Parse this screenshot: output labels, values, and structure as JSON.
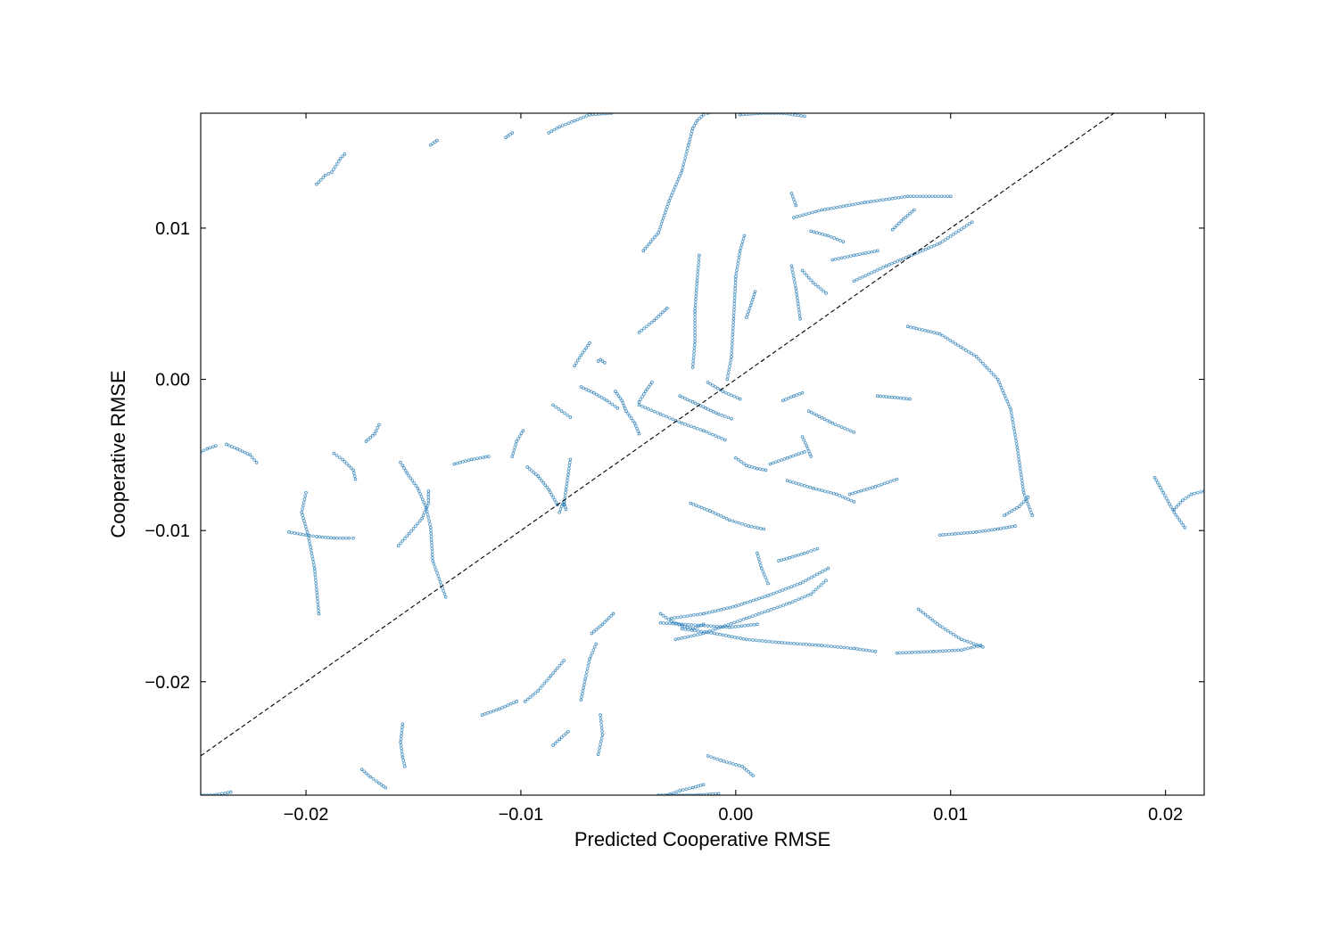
{
  "chart_data": {
    "type": "scatter",
    "xlabel": "Predicted Cooperative RMSE",
    "ylabel": "Cooperative RMSE",
    "xlim": [
      -0.0249,
      0.0218
    ],
    "ylim": [
      -0.0275,
      0.0176
    ],
    "x_ticks": [
      -0.02,
      -0.01,
      0.0,
      0.01,
      0.02
    ],
    "x_tick_labels": [
      "−0.02",
      "−0.01",
      "0.00",
      "0.01",
      "0.02"
    ],
    "y_ticks": [
      -0.02,
      -0.01,
      0.0,
      0.01
    ],
    "y_tick_labels": [
      "−0.02",
      "−0.01",
      "0.00",
      "0.01"
    ],
    "grid": false,
    "marker_color": "#1f77b4",
    "reference_line": {
      "style": "dashed",
      "color": "#000000",
      "slope": 1,
      "intercept": 0
    },
    "trails": [
      {
        "x": [
          -0.0135,
          -0.0141,
          -0.0142,
          -0.0144,
          -0.0148,
          -0.0153,
          -0.0155,
          -0.0156
        ],
        "y": [
          -0.0144,
          -0.012,
          -0.0098,
          -0.0085,
          -0.0072,
          -0.0062,
          -0.0057,
          -0.0055
        ]
      },
      {
        "x": [
          -0.0157,
          -0.0152,
          -0.0146,
          -0.0143,
          -0.0143
        ],
        "y": [
          -0.011,
          -0.0102,
          -0.0092,
          -0.0082,
          -0.0074
        ]
      },
      {
        "x": [
          -0.0208,
          -0.02,
          -0.0195,
          -0.0187,
          -0.018,
          -0.0178
        ],
        "y": [
          -0.0101,
          -0.0103,
          -0.0104,
          -0.0105,
          -0.0105,
          -0.0105
        ]
      },
      {
        "x": [
          -0.02,
          -0.0202,
          -0.0199,
          -0.0196,
          -0.0194
        ],
        "y": [
          -0.0075,
          -0.0088,
          -0.0103,
          -0.0125,
          -0.0155
        ]
      },
      {
        "x": [
          -0.0187,
          -0.0183,
          -0.0178,
          -0.0177
        ],
        "y": [
          -0.0049,
          -0.0053,
          -0.006,
          -0.0066
        ]
      },
      {
        "x": [
          -0.0172,
          -0.0168,
          -0.0166
        ],
        "y": [
          -0.0041,
          -0.0036,
          -0.003
        ]
      },
      {
        "x": [
          -0.0237,
          -0.0232,
          -0.0226,
          -0.0223
        ],
        "y": [
          -0.0043,
          -0.0046,
          -0.005,
          -0.0055
        ]
      },
      {
        "x": [
          -0.0249,
          -0.0246,
          -0.0242
        ],
        "y": [
          -0.0048,
          -0.0046,
          -0.0044
        ]
      },
      {
        "x": [
          -0.0195,
          -0.0191,
          -0.0188,
          -0.0184,
          -0.0182
        ],
        "y": [
          0.0129,
          0.0135,
          0.0137,
          0.0146,
          0.0149
        ]
      },
      {
        "x": [
          -0.0142,
          -0.0139
        ],
        "y": [
          0.0155,
          0.0158
        ]
      },
      {
        "x": [
          -0.0107,
          -0.0104
        ],
        "y": [
          0.016,
          0.0163
        ]
      },
      {
        "x": [
          -0.0087,
          -0.0082,
          -0.0075,
          -0.0068,
          -0.0058
        ],
        "y": [
          0.0163,
          0.0167,
          0.0171,
          0.0175,
          0.0176
        ]
      },
      {
        "x": [
          -0.0043,
          -0.0036,
          -0.0031,
          -0.0025,
          -0.0022,
          -0.002,
          -0.0018,
          -0.0015,
          -0.0013
        ],
        "y": [
          0.0085,
          0.0097,
          0.0118,
          0.0138,
          0.0155,
          0.0166,
          0.0171,
          0.0175,
          0.0176
        ]
      },
      {
        "x": [
          0.0002,
          0.0012,
          0.0022,
          0.0032
        ],
        "y": [
          0.0175,
          0.0176,
          0.0176,
          0.0174
        ]
      },
      {
        "x": [
          -0.002,
          -0.0019,
          -0.0019,
          -0.0018,
          -0.0017
        ],
        "y": [
          0.0008,
          0.0025,
          0.0045,
          0.0065,
          0.0082
        ]
      },
      {
        "x": [
          -0.0004,
          -0.0002,
          -0.0001,
          0.0,
          0.0002,
          0.0004
        ],
        "y": [
          0.0,
          0.0015,
          0.004,
          0.0068,
          0.0085,
          0.0095
        ]
      },
      {
        "x": [
          0.003,
          0.0028,
          0.0026
        ],
        "y": [
          0.004,
          0.006,
          0.0075
        ]
      },
      {
        "x": [
          0.0027,
          0.004,
          0.006,
          0.008,
          0.01
        ],
        "y": [
          0.0107,
          0.0112,
          0.0117,
          0.0121,
          0.0121
        ]
      },
      {
        "x": [
          0.0026,
          0.0028
        ],
        "y": [
          0.0123,
          0.0115
        ]
      },
      {
        "x": [
          0.0055,
          0.007,
          0.0095,
          0.011
        ],
        "y": [
          0.0065,
          0.0075,
          0.009,
          0.0104
        ]
      },
      {
        "x": [
          0.008,
          0.0095,
          0.0112,
          0.0122,
          0.0128,
          0.0131,
          0.0134,
          0.0138
        ],
        "y": [
          0.0035,
          0.003,
          0.0015,
          0.0,
          -0.002,
          -0.0045,
          -0.0075,
          -0.009
        ]
      },
      {
        "x": [
          0.0125,
          0.0132,
          0.0136
        ],
        "y": [
          -0.009,
          -0.0084,
          -0.0078
        ]
      },
      {
        "x": [
          0.0095,
          0.0112,
          0.0122,
          0.013
        ],
        "y": [
          -0.0103,
          -0.0101,
          -0.0099,
          -0.0097
        ]
      },
      {
        "x": [
          0.0195,
          0.0199,
          0.0204,
          0.0209
        ],
        "y": [
          -0.0065,
          -0.0075,
          -0.0088,
          -0.0098
        ]
      },
      {
        "x": [
          0.0204,
          0.0208,
          0.0212,
          0.0218
        ],
        "y": [
          -0.0086,
          -0.008,
          -0.0076,
          -0.0074
        ]
      },
      {
        "x": [
          0.0085,
          0.0095,
          0.0105,
          0.0115
        ],
        "y": [
          -0.0152,
          -0.0163,
          -0.0172,
          -0.0177
        ]
      },
      {
        "x": [
          0.0075,
          0.0092,
          0.0105,
          0.0114
        ],
        "y": [
          -0.0181,
          -0.018,
          -0.0179,
          -0.0176
        ]
      },
      {
        "x": [
          -0.0035,
          -0.0025,
          -0.0013,
          -0.0003,
          0.001
        ],
        "y": [
          -0.0161,
          -0.0162,
          -0.0163,
          -0.0164,
          -0.0162
        ]
      },
      {
        "x": [
          -0.003,
          -0.0015,
          0.0,
          0.0015,
          0.003,
          0.0043
        ],
        "y": [
          -0.0158,
          -0.0155,
          -0.015,
          -0.0143,
          -0.0135,
          -0.0125
        ]
      },
      {
        "x": [
          -0.0028,
          -0.0015,
          -0.0005,
          0.0005,
          0.0015,
          0.0025,
          0.0035,
          0.0042
        ],
        "y": [
          -0.0172,
          -0.0168,
          -0.0163,
          -0.0158,
          -0.0153,
          -0.0148,
          -0.0142,
          -0.0133
        ]
      },
      {
        "x": [
          -0.0025,
          -0.001,
          0.0005,
          0.002,
          0.004,
          0.0055,
          0.0065
        ],
        "y": [
          -0.0165,
          -0.0168,
          -0.0172,
          -0.0174,
          -0.0176,
          -0.0178,
          -0.018
        ]
      },
      {
        "x": [
          -0.0035,
          -0.003,
          -0.0025,
          -0.002,
          -0.0015
        ],
        "y": [
          -0.0155,
          -0.016,
          -0.0163,
          -0.0165,
          -0.0162
        ]
      },
      {
        "x": [
          0.002,
          0.0025,
          0.0032,
          0.0038
        ],
        "y": [
          -0.012,
          -0.0118,
          -0.0115,
          -0.0112
        ]
      },
      {
        "x": [
          0.001,
          0.0012,
          0.0015
        ],
        "y": [
          -0.0115,
          -0.0125,
          -0.0135
        ]
      },
      {
        "x": [
          -0.0065,
          -0.0068,
          -0.007,
          -0.0072
        ],
        "y": [
          -0.0175,
          -0.0185,
          -0.0198,
          -0.0212
        ]
      },
      {
        "x": [
          -0.0063,
          -0.0062,
          -0.0064
        ],
        "y": [
          -0.0222,
          -0.0235,
          -0.0248
        ]
      },
      {
        "x": [
          -0.0067,
          -0.0062,
          -0.0057
        ],
        "y": [
          -0.0168,
          -0.0162,
          -0.0155
        ]
      },
      {
        "x": [
          -0.0098,
          -0.0092,
          -0.0086,
          -0.008
        ],
        "y": [
          -0.0213,
          -0.0206,
          -0.0196,
          -0.0186
        ]
      },
      {
        "x": [
          -0.0118,
          -0.011,
          -0.0102
        ],
        "y": [
          -0.0222,
          -0.0218,
          -0.0213
        ]
      },
      {
        "x": [
          -0.0155,
          -0.0156,
          -0.0155,
          -0.0154
        ],
        "y": [
          -0.0228,
          -0.024,
          -0.025,
          -0.0256
        ]
      },
      {
        "x": [
          -0.0174,
          -0.017,
          -0.0166,
          -0.0163
        ],
        "y": [
          -0.0258,
          -0.0263,
          -0.0267,
          -0.027
        ]
      },
      {
        "x": [
          -0.0032,
          -0.0026,
          -0.002,
          -0.0015
        ],
        "y": [
          -0.0275,
          -0.0272,
          -0.027,
          -0.0268
        ]
      },
      {
        "x": [
          -0.0013,
          -0.0007,
          0.0003,
          0.0008
        ],
        "y": [
          -0.0249,
          -0.0252,
          -0.0256,
          -0.0262
        ]
      },
      {
        "x": [
          -0.0008,
          -0.0019,
          -0.0036
        ],
        "y": [
          -0.0274,
          -0.0275,
          -0.0275
        ]
      },
      {
        "x": [
          -0.0085,
          -0.0082,
          -0.0078
        ],
        "y": [
          -0.0242,
          -0.0238,
          -0.0233
        ]
      },
      {
        "x": [
          -0.0235,
          -0.0243,
          -0.0249
        ],
        "y": [
          -0.0273,
          -0.0275,
          -0.0275
        ]
      },
      {
        "x": [
          -0.0104,
          -0.0102,
          -0.0099
        ],
        "y": [
          -0.0051,
          -0.0041,
          -0.0034
        ]
      },
      {
        "x": [
          -0.0115,
          -0.0123,
          -0.0131
        ],
        "y": [
          -0.0051,
          -0.0053,
          -0.0056
        ]
      },
      {
        "x": [
          -0.0097,
          -0.0092,
          -0.0087,
          -0.0083
        ],
        "y": [
          -0.0058,
          -0.0064,
          -0.0073,
          -0.0083
        ]
      },
      {
        "x": [
          -0.0082,
          -0.0081,
          -0.008,
          -0.0079
        ],
        "y": [
          -0.0088,
          -0.0084,
          -0.0081,
          -0.0086
        ]
      },
      {
        "x": [
          -0.0077,
          -0.0078,
          -0.0079,
          -0.008
        ],
        "y": [
          -0.0053,
          -0.0063,
          -0.0073,
          -0.0083
        ]
      },
      {
        "x": [
          -0.0064,
          -0.0063,
          -0.0062,
          -0.0061
        ],
        "y": [
          0.0012,
          0.0013,
          0.0012,
          0.0011
        ]
      },
      {
        "x": [
          -0.0056,
          -0.0053,
          -0.0051,
          -0.0047,
          -0.0045
        ],
        "y": [
          -0.0008,
          -0.0014,
          -0.0021,
          -0.0029,
          -0.0036
        ]
      },
      {
        "x": [
          -0.0072,
          -0.0066,
          -0.006,
          -0.0055
        ],
        "y": [
          -0.0005,
          -0.0009,
          -0.0014,
          -0.0019
        ]
      },
      {
        "x": [
          -0.0045,
          -0.0035,
          -0.0025,
          -0.0015,
          -0.0005
        ],
        "y": [
          -0.0017,
          -0.0023,
          -0.0029,
          -0.0034,
          -0.004
        ]
      },
      {
        "x": [
          -0.0026,
          -0.002,
          -0.0014,
          -0.0008,
          -0.0002
        ],
        "y": [
          -0.0011,
          -0.0015,
          -0.0019,
          -0.0023,
          -0.0026
        ]
      },
      {
        "x": [
          0.0,
          0.0005,
          0.001,
          0.0014
        ],
        "y": [
          -0.0052,
          -0.0057,
          -0.0059,
          -0.006
        ]
      },
      {
        "x": [
          0.0016,
          0.0024,
          0.0032
        ],
        "y": [
          -0.0056,
          -0.0052,
          -0.0048
        ]
      },
      {
        "x": [
          0.0022,
          0.0027,
          0.0031
        ],
        "y": [
          -0.0014,
          -0.0011,
          -0.0009
        ]
      },
      {
        "x": [
          0.0031,
          0.0033,
          0.0035
        ],
        "y": [
          -0.0038,
          -0.0044,
          -0.0051
        ]
      },
      {
        "x": [
          0.0066,
          0.0074,
          0.0081
        ],
        "y": [
          -0.0011,
          -0.0012,
          -0.0013
        ]
      },
      {
        "x": [
          0.0034,
          0.0045,
          0.0055
        ],
        "y": [
          -0.0021,
          -0.0029,
          -0.0035
        ]
      },
      {
        "x": [
          -0.0021,
          -0.0012,
          -0.0003,
          0.0006,
          0.0013
        ],
        "y": [
          -0.0082,
          -0.0087,
          -0.0093,
          -0.0097,
          -0.0099
        ]
      },
      {
        "x": [
          0.0024,
          0.0036,
          0.0047,
          0.0055
        ],
        "y": [
          -0.0067,
          -0.0072,
          -0.0076,
          -0.0081
        ]
      },
      {
        "x": [
          0.0053,
          0.0065,
          0.0075
        ],
        "y": [
          -0.0076,
          -0.0071,
          -0.0066
        ]
      },
      {
        "x": [
          0.0031,
          0.0036,
          0.0042
        ],
        "y": [
          0.0072,
          0.0064,
          0.0057
        ]
      },
      {
        "x": [
          0.0045,
          0.0055,
          0.0066
        ],
        "y": [
          0.0079,
          0.0082,
          0.0085
        ]
      },
      {
        "x": [
          0.0073,
          0.0078,
          0.0083
        ],
        "y": [
          0.0099,
          0.0106,
          0.0112
        ]
      },
      {
        "x": [
          0.0035,
          0.0043,
          0.005
        ],
        "y": [
          0.0098,
          0.0095,
          0.0091
        ]
      },
      {
        "x": [
          -0.0045,
          -0.0042,
          -0.0039
        ],
        "y": [
          -0.0015,
          -0.0008,
          -0.0002
        ]
      },
      {
        "x": [
          -0.0085,
          -0.0081,
          -0.0077
        ],
        "y": [
          -0.0017,
          -0.0021,
          -0.0025
        ]
      },
      {
        "x": [
          -0.0068,
          -0.0072,
          -0.0075
        ],
        "y": [
          0.0024,
          0.0016,
          0.0009
        ]
      },
      {
        "x": [
          -0.0045,
          -0.0038,
          -0.0032
        ],
        "y": [
          0.0031,
          0.0039,
          0.0047
        ]
      },
      {
        "x": [
          -0.0013,
          -0.0006,
          0.0002
        ],
        "y": [
          -0.0002,
          -0.0008,
          -0.0013
        ]
      },
      {
        "x": [
          0.0009,
          0.0007,
          0.0005
        ],
        "y": [
          0.0058,
          0.0049,
          0.0041
        ]
      }
    ]
  }
}
